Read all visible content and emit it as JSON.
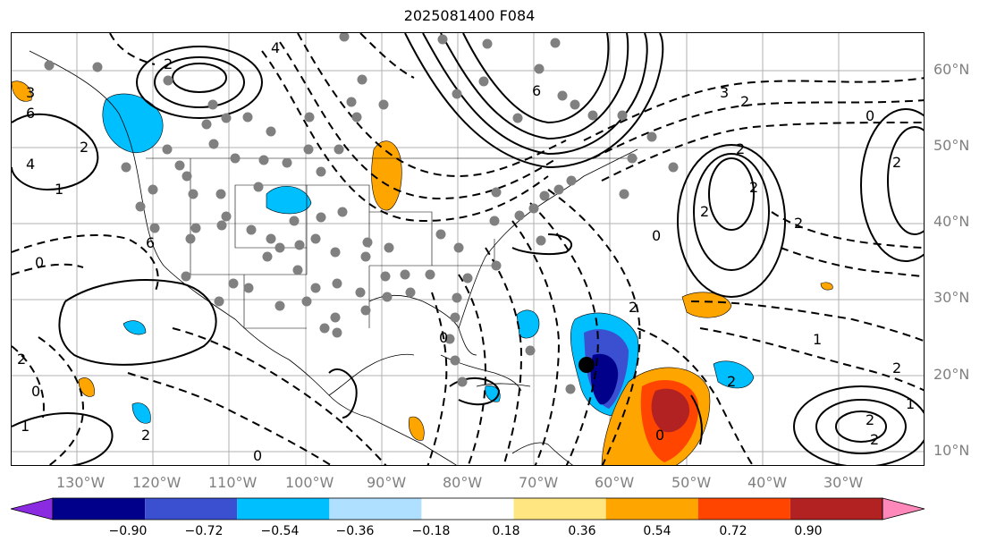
{
  "title": "2025081400 F084",
  "lat_ticks": [
    "60°N",
    "50°N",
    "40°N",
    "30°N",
    "20°N",
    "10°N"
  ],
  "lon_ticks": [
    "130°W",
    "120°W",
    "110°W",
    "100°W",
    "90°W",
    "80°W",
    "70°W",
    "60°W",
    "50°W",
    "40°W",
    "30°W"
  ],
  "contour_labels": [
    "3",
    "6",
    "4",
    "1",
    "2",
    "2",
    "4",
    "6",
    "3",
    "2",
    "0",
    "2",
    "2",
    "2",
    "2",
    "2",
    "0",
    "2",
    "0",
    "6",
    "0",
    "2",
    "1",
    "2",
    "1",
    "0",
    "0",
    "0",
    "2",
    "2",
    "2",
    "1",
    "2"
  ],
  "colorbar": {
    "labels": [
      "−0.90",
      "−0.72",
      "−0.54",
      "−0.36",
      "−0.18",
      "0.18",
      "0.36",
      "0.54",
      "0.72",
      "0.90"
    ],
    "colors": [
      "#8a2be2",
      "#00008b",
      "#3a50d0",
      "#00bfff",
      "#b0e0ff",
      "#ffffff",
      "#ffe680",
      "#ffa500",
      "#ff4500",
      "#b22222",
      "#ff88bb"
    ],
    "extend": "both"
  },
  "storm_marker": "black-dot"
}
